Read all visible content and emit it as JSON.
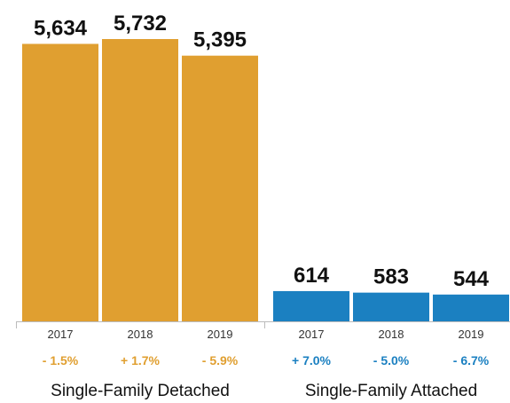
{
  "chart_data": {
    "type": "bar",
    "groups": [
      {
        "name": "Single-Family Detached",
        "color": "#E09F30",
        "categories": [
          "2017",
          "2018",
          "2019"
        ],
        "values": [
          5634,
          5732,
          5395
        ],
        "value_labels": [
          "5,634",
          "5,732",
          "5,395"
        ],
        "changes": [
          "- 1.5%",
          "+ 1.7%",
          "- 5.9%"
        ]
      },
      {
        "name": "Single-Family Attached",
        "color": "#1B80C1",
        "categories": [
          "2017",
          "2018",
          "2019"
        ],
        "values": [
          614,
          583,
          544
        ],
        "value_labels": [
          "614",
          "583",
          "544"
        ],
        "changes": [
          "+ 7.0%",
          "- 5.0%",
          "- 6.7%"
        ]
      }
    ],
    "ylim": [
      0,
      5732
    ],
    "grid": false,
    "legend": "none"
  }
}
